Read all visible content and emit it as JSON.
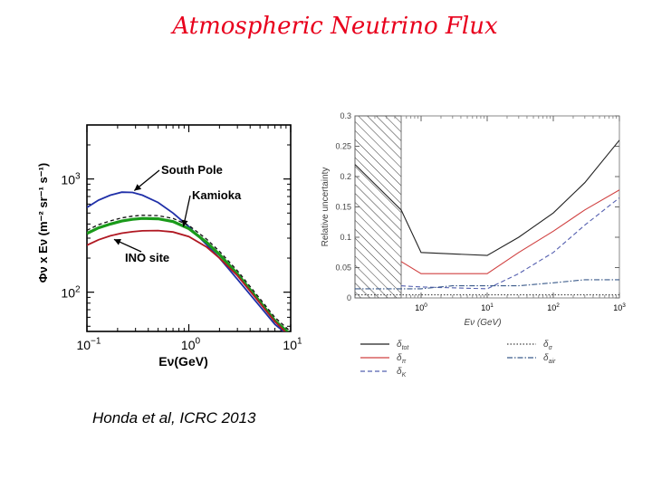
{
  "slide": {
    "title": "Atmospheric Neutrino Flux",
    "credit": "Honda et al, ICRC 2013"
  },
  "chart_data": [
    {
      "type": "line",
      "xlabel": "Eν(GeV)",
      "ylabel": "Φν x Eν (m⁻² sr⁻¹ s⁻¹)",
      "xscale": "log",
      "yscale": "log",
      "xlim": [
        0.1,
        10
      ],
      "ylim": [
        45,
        3000
      ],
      "x_ticks": [
        {
          "value": 0.1,
          "base": "10",
          "exp": "−1"
        },
        {
          "value": 1,
          "base": "10",
          "exp": "0"
        },
        {
          "value": 10,
          "base": "10",
          "exp": "1"
        }
      ],
      "y_ticks": [
        {
          "value": 100,
          "base": "10",
          "exp": "2"
        },
        {
          "value": 1000,
          "base": "10",
          "exp": "3"
        }
      ],
      "annotations": [
        {
          "text": "South Pole",
          "series": "South Pole"
        },
        {
          "text": "Kamioka",
          "series": "Kamioka"
        },
        {
          "text": "INO site",
          "series": "INO site"
        }
      ],
      "series": [
        {
          "name": "South Pole",
          "color": "#1f2fa8",
          "x": [
            0.1,
            0.13,
            0.17,
            0.22,
            0.28,
            0.35,
            0.5,
            0.7,
            1,
            1.5,
            2,
            3,
            5,
            7,
            10
          ],
          "y": [
            560,
            650,
            720,
            765,
            760,
            720,
            620,
            500,
            380,
            262,
            200,
            130,
            75,
            52,
            40
          ]
        },
        {
          "name": "Kamioka",
          "color": "#1a9a1a",
          "dashed_color": "#111111",
          "x": [
            0.1,
            0.13,
            0.17,
            0.22,
            0.28,
            0.35,
            0.5,
            0.7,
            1,
            1.5,
            2,
            3,
            5,
            7,
            10
          ],
          "y": [
            330,
            370,
            400,
            425,
            440,
            448,
            445,
            420,
            365,
            275,
            215,
            145,
            82,
            56,
            42
          ]
        },
        {
          "name": "INO site",
          "color": "#b01822",
          "x": [
            0.1,
            0.13,
            0.17,
            0.22,
            0.28,
            0.35,
            0.5,
            0.7,
            1,
            1.5,
            2,
            3,
            5,
            7,
            10
          ],
          "y": [
            260,
            290,
            315,
            332,
            342,
            348,
            350,
            340,
            310,
            250,
            200,
            140,
            80,
            55,
            40
          ]
        }
      ]
    },
    {
      "type": "line",
      "xlabel": "Eν (GeV)",
      "ylabel": "Relative uncertainty",
      "xscale": "log",
      "xlim": [
        0.1,
        1000
      ],
      "ylim": [
        0,
        0.3
      ],
      "x_ticks": [
        {
          "value": 1,
          "base": "10",
          "exp": "0"
        },
        {
          "value": 10,
          "base": "10",
          "exp": "1"
        },
        {
          "value": 100,
          "base": "10",
          "exp": "2"
        },
        {
          "value": 1000,
          "base": "10",
          "exp": "3"
        }
      ],
      "y_ticks": [
        {
          "value": 0,
          "label": "0"
        },
        {
          "value": 0.05,
          "label": "0.05"
        },
        {
          "value": 0.1,
          "label": "0.1"
        },
        {
          "value": 0.15,
          "label": "0.15"
        },
        {
          "value": 0.2,
          "label": "0.2"
        },
        {
          "value": 0.25,
          "label": "0.25"
        },
        {
          "value": 0.3,
          "label": "0.3"
        }
      ],
      "hatched_region": [
        0.1,
        0.5
      ],
      "legend_placement": "below",
      "series": [
        {
          "name": "δtot",
          "base": "δ",
          "sub": "tot",
          "color": "#222222",
          "dash": "",
          "x": [
            0.1,
            0.5,
            1,
            10,
            30,
            100,
            300,
            1000
          ],
          "y": [
            0.22,
            0.145,
            0.075,
            0.07,
            0.1,
            0.14,
            0.19,
            0.26
          ]
        },
        {
          "name": "δπ",
          "base": "δ",
          "sub": "π",
          "color": "#d04040",
          "dash": "",
          "x": [
            0.5,
            1,
            10,
            30,
            100,
            300,
            1000
          ],
          "y": [
            0.06,
            0.04,
            0.04,
            0.075,
            0.11,
            0.145,
            0.178
          ]
        },
        {
          "name": "δK",
          "base": "δ",
          "sub": "K",
          "color": "#5560b0",
          "dash": "5,3",
          "x": [
            0.5,
            1,
            10,
            30,
            100,
            300,
            1000
          ],
          "y": [
            0.02,
            0.018,
            0.015,
            0.04,
            0.075,
            0.12,
            0.165
          ]
        },
        {
          "name": "δσ",
          "base": "δ",
          "sub": "σ",
          "color": "#444444",
          "dash": "1.5,2",
          "x": [
            0.1,
            1,
            10,
            100,
            1000
          ],
          "y": [
            0.005,
            0.005,
            0.005,
            0.005,
            0.005
          ]
        },
        {
          "name": "δair",
          "base": "δ",
          "sub": "air",
          "color": "#3a5a8a",
          "dash": "6,2,1.5,2",
          "x": [
            0.1,
            1,
            3,
            10,
            30,
            100,
            300,
            1000
          ],
          "y": [
            0.015,
            0.015,
            0.02,
            0.02,
            0.02,
            0.025,
            0.03,
            0.03
          ]
        }
      ]
    }
  ]
}
